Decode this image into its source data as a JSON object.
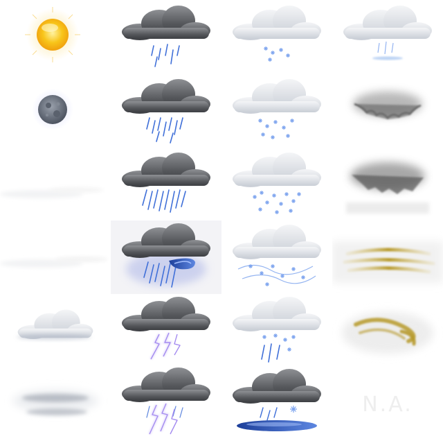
{
  "icon_set": {
    "columns": 4,
    "rows": 6,
    "icons": [
      {
        "name": "sun-icon"
      },
      {
        "name": "rain-light-icon"
      },
      {
        "name": "snow-light-icon"
      },
      {
        "name": "sleet-light-icon"
      },
      {
        "name": "moon-icon"
      },
      {
        "name": "rain-moderate-icon"
      },
      {
        "name": "snow-moderate-icon"
      },
      {
        "name": "dust-cloud-icon"
      },
      {
        "name": "mist-faint-icon"
      },
      {
        "name": "rain-heavy-icon"
      },
      {
        "name": "snow-heavy-icon"
      },
      {
        "name": "dust-storm-icon"
      },
      {
        "name": "mist-faint-2-icon"
      },
      {
        "name": "rain-flood-icon"
      },
      {
        "name": "snow-blizzard-icon"
      },
      {
        "name": "sandstorm-icon"
      },
      {
        "name": "cloudy-icon"
      },
      {
        "name": "thunderstorm-icon"
      },
      {
        "name": "snow-showers-icon"
      },
      {
        "name": "tornado-sand-icon"
      },
      {
        "name": "fog-icon"
      },
      {
        "name": "thunderstorm-heavy-icon"
      },
      {
        "name": "freezing-rain-icon"
      },
      {
        "name": "not-available-icon",
        "label": "N.A."
      }
    ]
  },
  "colors": {
    "sun_core": "#f8c51a",
    "sun_glow": "#fdeaa0",
    "moon": "#6f7784",
    "cloud_dark": "#57595d",
    "cloud_light": "#e7e9ec",
    "rain": "#3f6fd8",
    "snow": "#7aa2ee",
    "lightning": "#a48bf0",
    "sand": "#b79a2c",
    "na_text": "#eeeeee"
  }
}
